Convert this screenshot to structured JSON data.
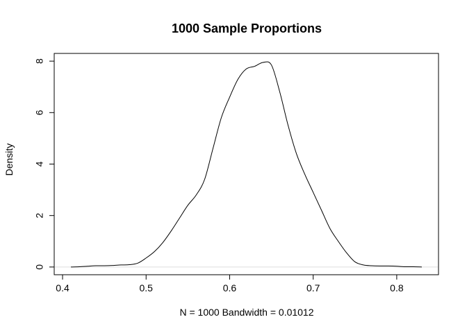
{
  "chart_data": {
    "type": "line",
    "title": "1000 Sample Proportions",
    "xlabel": "N = 1000   Bandwidth = 0.01012",
    "ylabel": "Density",
    "xlim": [
      0.39,
      0.85
    ],
    "ylim": [
      -0.3,
      8.3
    ],
    "x_ticks": [
      "0.4",
      "0.5",
      "0.6",
      "0.7",
      "0.8"
    ],
    "y_ticks": [
      "0",
      "2",
      "4",
      "6",
      "8"
    ],
    "grid": false,
    "reference_line_y": 0,
    "series": [
      {
        "x": [
          0.41,
          0.42,
          0.43,
          0.44,
          0.45,
          0.46,
          0.47,
          0.48,
          0.49,
          0.5,
          0.51,
          0.52,
          0.53,
          0.54,
          0.55,
          0.56,
          0.57,
          0.58,
          0.59,
          0.6,
          0.61,
          0.62,
          0.63,
          0.64,
          0.65,
          0.66,
          0.67,
          0.68,
          0.69,
          0.7,
          0.71,
          0.72,
          0.73,
          0.74,
          0.75,
          0.76,
          0.77,
          0.78,
          0.79,
          0.8,
          0.81,
          0.82,
          0.83
        ],
        "y": [
          0.0,
          0.01,
          0.03,
          0.05,
          0.05,
          0.06,
          0.08,
          0.09,
          0.15,
          0.35,
          0.6,
          0.95,
          1.4,
          1.9,
          2.4,
          2.8,
          3.4,
          4.6,
          5.8,
          6.6,
          7.3,
          7.7,
          7.8,
          7.95,
          7.85,
          6.8,
          5.5,
          4.4,
          3.6,
          2.9,
          2.2,
          1.5,
          1.0,
          0.55,
          0.2,
          0.08,
          0.05,
          0.04,
          0.04,
          0.03,
          0.01,
          0.01,
          0.0
        ]
      }
    ]
  }
}
